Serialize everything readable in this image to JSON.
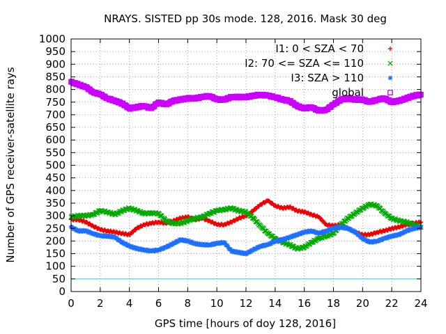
{
  "chart_data": {
    "type": "scatter",
    "title": "NRAYS. SISTED pp 30s mode. 128, 2016. Mask 30 deg",
    "xlabel": "GPS time [hours of doy 128, 2016]",
    "ylabel": "Number of GPS receiver-satellite rays",
    "xlim": [
      0,
      24
    ],
    "ylim": [
      0,
      1000
    ],
    "x_ticks": [
      "0",
      "2",
      "4",
      "6",
      "8",
      "10",
      "12",
      "14",
      "16",
      "18",
      "20",
      "22",
      "24"
    ],
    "y_ticks": [
      "0",
      "50",
      "100",
      "150",
      "200",
      "250",
      "300",
      "350",
      "400",
      "450",
      "500",
      "550",
      "600",
      "650",
      "700",
      "750",
      "800",
      "850",
      "900",
      "950",
      "1000"
    ],
    "reference_line": {
      "y": 50,
      "color": "#33cccc"
    },
    "legend_position": "top-right",
    "series": [
      {
        "name": "I1: 0 < SZA < 70",
        "marker": "+",
        "color": "#ee0000",
        "x": [
          0,
          0.5,
          1,
          1.5,
          2,
          2.5,
          3,
          3.5,
          4,
          4.5,
          5,
          5.5,
          6,
          6.5,
          7,
          7.5,
          8,
          8.5,
          9,
          9.5,
          10,
          10.5,
          11,
          11.5,
          12,
          12.5,
          13,
          13.5,
          14,
          14.5,
          15,
          15.5,
          16,
          16.5,
          17,
          17.5,
          18,
          18.5,
          19,
          19.5,
          20,
          20.5,
          21,
          21.5,
          22,
          22.5,
          23,
          23.5,
          24
        ],
        "values": [
          285,
          285,
          275,
          260,
          245,
          240,
          235,
          230,
          225,
          250,
          265,
          270,
          275,
          270,
          280,
          290,
          295,
          285,
          290,
          280,
          265,
          265,
          275,
          290,
          300,
          320,
          345,
          360,
          340,
          330,
          335,
          320,
          315,
          305,
          295,
          265,
          260,
          265,
          250,
          235,
          225,
          225,
          235,
          240,
          250,
          255,
          265,
          270,
          275
        ]
      },
      {
        "name": "I2: 70 <= SZA <= 110",
        "marker": "x",
        "color": "#00aa00",
        "x": [
          0,
          0.5,
          1,
          1.5,
          2,
          2.5,
          3,
          3.5,
          4,
          4.5,
          5,
          5.5,
          6,
          6.5,
          7,
          7.5,
          8,
          8.5,
          9,
          9.5,
          10,
          10.5,
          11,
          11.5,
          12,
          12.5,
          13,
          13.5,
          14,
          14.5,
          15,
          15.5,
          16,
          16.5,
          17,
          17.5,
          18,
          18.5,
          19,
          19.5,
          20,
          20.5,
          21,
          21.5,
          22,
          22.5,
          23,
          23.5,
          24
        ],
        "values": [
          295,
          300,
          300,
          305,
          320,
          315,
          305,
          320,
          330,
          320,
          310,
          310,
          310,
          280,
          270,
          270,
          280,
          290,
          295,
          310,
          320,
          325,
          330,
          320,
          315,
          290,
          260,
          230,
          210,
          195,
          185,
          170,
          175,
          195,
          210,
          220,
          230,
          265,
          290,
          310,
          330,
          345,
          340,
          310,
          290,
          280,
          275,
          265,
          255
        ]
      },
      {
        "name": "I3: SZA > 110",
        "marker": "*",
        "color": "#1e6fff",
        "x": [
          0,
          0.5,
          1,
          1.5,
          2,
          2.5,
          3,
          3.5,
          4,
          4.5,
          5,
          5.5,
          6,
          6.5,
          7,
          7.5,
          8,
          8.5,
          9,
          9.5,
          10,
          10.5,
          11,
          11.5,
          12,
          12.5,
          13,
          13.5,
          14,
          14.5,
          15,
          15.5,
          16,
          16.5,
          17,
          17.5,
          18,
          18.5,
          19,
          19.5,
          20,
          20.5,
          21,
          21.5,
          22,
          22.5,
          23,
          23.5,
          24
        ],
        "values": [
          255,
          240,
          240,
          230,
          220,
          220,
          215,
          195,
          180,
          170,
          165,
          160,
          165,
          175,
          190,
          205,
          200,
          190,
          185,
          185,
          190,
          195,
          160,
          155,
          150,
          165,
          180,
          185,
          200,
          205,
          215,
          225,
          235,
          240,
          230,
          240,
          250,
          255,
          250,
          235,
          210,
          195,
          200,
          210,
          220,
          225,
          240,
          250,
          255
        ]
      },
      {
        "name": "global",
        "marker": "square",
        "color": "#cc00ff",
        "x": [
          0,
          0.5,
          1,
          1.5,
          2,
          2.5,
          3,
          3.5,
          4,
          4.5,
          5,
          5.5,
          6,
          6.5,
          7,
          7.5,
          8,
          8.5,
          9,
          9.5,
          10,
          10.5,
          11,
          11.5,
          12,
          12.5,
          13,
          13.5,
          14,
          14.5,
          15,
          15.5,
          16,
          16.5,
          17,
          17.5,
          18,
          18.5,
          19,
          19.5,
          20,
          20.5,
          21,
          21.5,
          22,
          22.5,
          23,
          23.5,
          24
        ],
        "values": [
          830,
          820,
          810,
          790,
          780,
          765,
          755,
          745,
          725,
          730,
          735,
          725,
          750,
          740,
          755,
          760,
          765,
          765,
          770,
          775,
          760,
          760,
          770,
          770,
          770,
          775,
          780,
          775,
          770,
          760,
          755,
          735,
          725,
          730,
          715,
          720,
          740,
          760,
          765,
          760,
          760,
          750,
          760,
          765,
          750,
          755,
          765,
          775,
          780
        ]
      }
    ]
  }
}
